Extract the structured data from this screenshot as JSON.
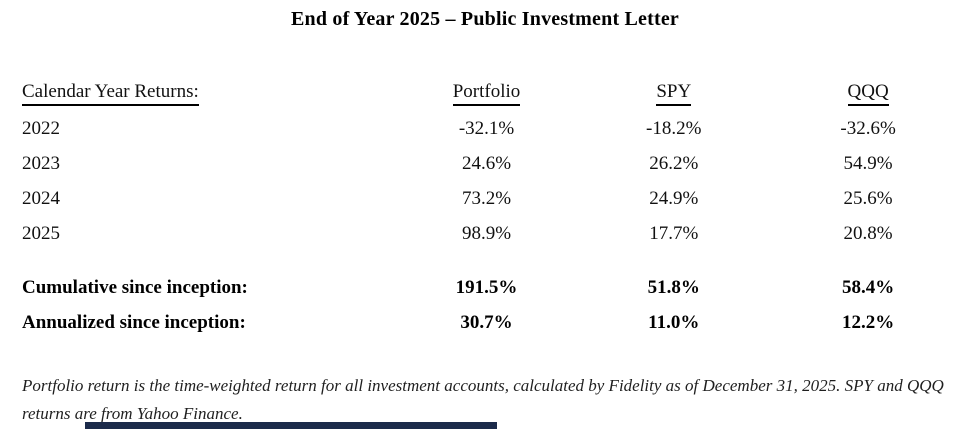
{
  "title": "End of Year 2025 – Public Investment Letter",
  "table": {
    "row_header_label": "Calendar Year Returns:",
    "columns": [
      "Portfolio",
      "SPY",
      "QQQ"
    ],
    "rows": [
      {
        "label": "2022",
        "values": [
          "-32.1%",
          "-18.2%",
          "-32.6%"
        ]
      },
      {
        "label": "2023",
        "values": [
          "24.6%",
          "26.2%",
          "54.9%"
        ]
      },
      {
        "label": "2024",
        "values": [
          "73.2%",
          "24.9%",
          "25.6%"
        ]
      },
      {
        "label": "2025",
        "values": [
          "98.9%",
          "17.7%",
          "20.8%"
        ]
      }
    ],
    "summary_rows": [
      {
        "label": "Cumulative since inception:",
        "values": [
          "191.5%",
          "51.8%",
          "58.4%"
        ]
      },
      {
        "label": "Annualized since inception:",
        "values": [
          "30.7%",
          "11.0%",
          "12.2%"
        ]
      }
    ]
  },
  "footnote": "Portfolio return is the time-weighted return for all investment accounts, calculated by Fidelity as of December 31, 2025. SPY and QQQ returns are from Yahoo Finance.",
  "colors": {
    "text": "#111111",
    "cropped_bottom_bar": "#1b2a4a"
  },
  "chart_data": {
    "type": "table",
    "title": "End of Year 2025 – Public Investment Letter",
    "categories": [
      "2022",
      "2023",
      "2024",
      "2025"
    ],
    "series": [
      {
        "name": "Portfolio",
        "values": [
          -32.1,
          24.6,
          73.2,
          98.9
        ],
        "cumulative_since_inception": 191.5,
        "annualized_since_inception": 30.7
      },
      {
        "name": "SPY",
        "values": [
          -18.2,
          26.2,
          24.9,
          17.7
        ],
        "cumulative_since_inception": 51.8,
        "annualized_since_inception": 11.0
      },
      {
        "name": "QQQ",
        "values": [
          -32.6,
          54.9,
          25.6,
          20.8
        ],
        "cumulative_since_inception": 58.4,
        "annualized_since_inception": 12.2
      }
    ],
    "units": "percent"
  }
}
